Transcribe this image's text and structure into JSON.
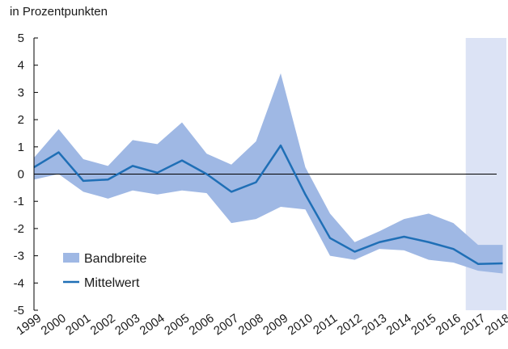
{
  "chart_data": {
    "type": "area",
    "ylabel": "in Prozentpunkten",
    "ylim": [
      -5,
      5
    ],
    "yticks": [
      5,
      4,
      3,
      2,
      1,
      0,
      -1,
      -2,
      -3,
      -4,
      -5
    ],
    "ytick_labels": [
      "5",
      "4",
      "3",
      "2",
      "1",
      "0",
      "-1",
      "-2",
      "-3",
      "-4",
      "-5"
    ],
    "categories": [
      "1999",
      "2000",
      "2001",
      "2002",
      "2003",
      "2004",
      "2005",
      "2006",
      "2007",
      "2008",
      "2009",
      "2010",
      "2011",
      "2012",
      "2013",
      "2014",
      "2015",
      "2016",
      "2017",
      "2018"
    ],
    "forecast_shading": {
      "from": "2016.5",
      "to": "2018.5",
      "color": "#dce3f5"
    },
    "legend": {
      "placement": "bottom-left"
    },
    "series": [
      {
        "name": "Bandbreite",
        "kind": "band",
        "color": "#9fb8e4",
        "upper": [
          0.6,
          1.65,
          0.55,
          0.3,
          1.25,
          1.1,
          1.9,
          0.75,
          0.35,
          1.2,
          3.7,
          0.25,
          -1.45,
          -2.5,
          -2.1,
          -1.65,
          -1.45,
          -1.8,
          -2.6,
          -2.6
        ],
        "lower": [
          -0.2,
          0.0,
          -0.65,
          -0.9,
          -0.6,
          -0.75,
          -0.6,
          -0.7,
          -1.8,
          -1.65,
          -1.2,
          -1.3,
          -3.0,
          -3.15,
          -2.75,
          -2.8,
          -3.15,
          -3.25,
          -3.55,
          -3.65
        ]
      },
      {
        "name": "Mittelwert",
        "kind": "line",
        "color": "#1f6fb6",
        "values": [
          0.25,
          0.8,
          -0.25,
          -0.2,
          0.3,
          0.05,
          0.5,
          0.0,
          -0.65,
          -0.3,
          1.05,
          -0.75,
          -2.35,
          -2.85,
          -2.5,
          -2.3,
          -2.5,
          -2.75,
          -3.3,
          -3.28
        ]
      }
    ]
  }
}
